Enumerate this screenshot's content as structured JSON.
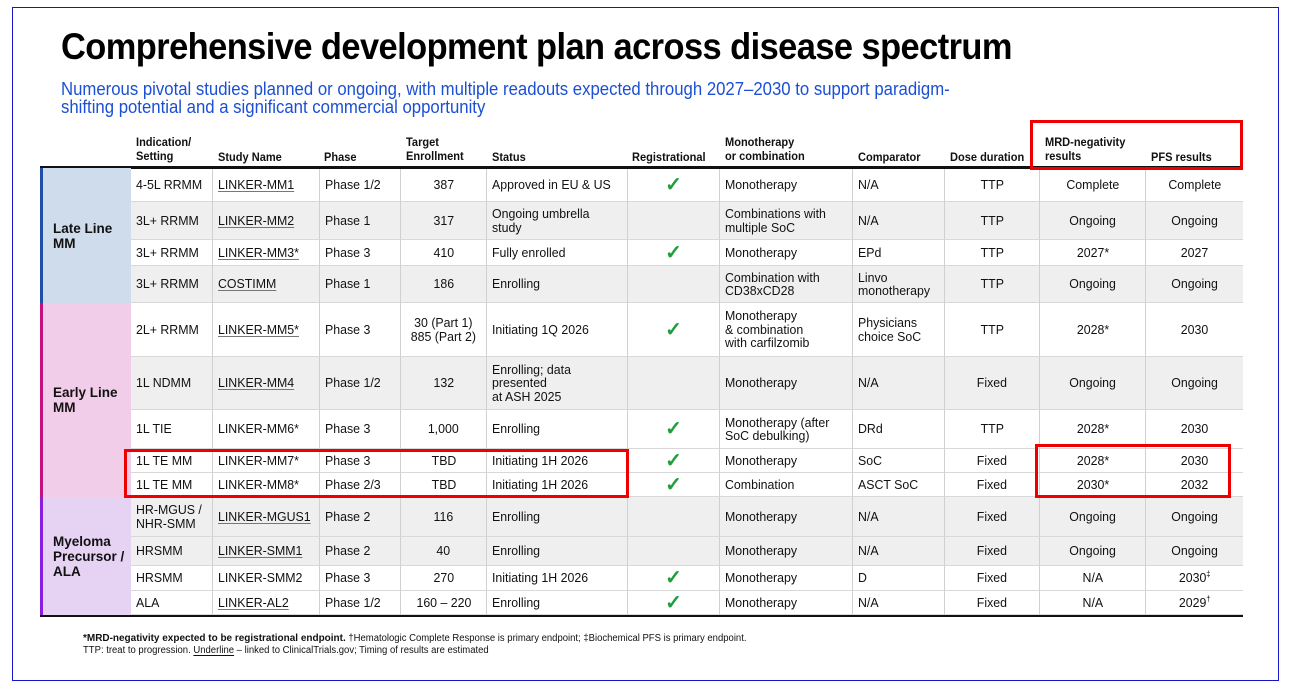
{
  "title": "Comprehensive development plan across disease spectrum",
  "subtitle": "Numerous pivotal studies planned or ongoing, with multiple readouts expected through 2027–2030 to support paradigm-shifting potential and a significant commercial opportunity",
  "colors": {
    "accent_blue": "#1a4fd6",
    "frame_border": "#1414c8",
    "highlight_red": "#ee0000",
    "check_green": "#1f9e3a",
    "late_line_bg": "#cfdcec",
    "early_line_bg": "#f2cdea",
    "precursor_bg": "#e6d3f3"
  },
  "table": {
    "headers": {
      "indication": "Indication/\nSetting",
      "study": "Study Name",
      "phase": "Phase",
      "enrollment": "Target\nEnrollment",
      "status": "Status",
      "registrational": "Registrational",
      "therapy": "Monotherapy\nor combination",
      "comparator": "Comparator",
      "dose": "Dose duration",
      "mrd": "MRD-negativity\nresults",
      "pfs": "PFS results"
    },
    "groups": [
      {
        "label": "Late Line MM"
      },
      {
        "label": "Early Line MM"
      },
      {
        "label": "Myeloma Precursor / ALA"
      }
    ],
    "rows": [
      {
        "indication": "4-5L RRMM",
        "study": "LINKER-MM1",
        "linked": true,
        "phase": "Phase 1/2",
        "enrollment": "387",
        "status": "Approved in EU & US",
        "registrational": true,
        "therapy": "Monotherapy",
        "comparator": "N/A",
        "dose": "TTP",
        "mrd": "Complete",
        "pfs": "Complete"
      },
      {
        "indication": "3L+ RRMM",
        "study": "LINKER-MM2",
        "linked": true,
        "phase": "Phase 1",
        "enrollment": "317",
        "status": "Ongoing umbrella study",
        "registrational": false,
        "therapy": "Combinations with multiple SoC",
        "comparator": "N/A",
        "dose": "TTP",
        "mrd": "Ongoing",
        "pfs": "Ongoing"
      },
      {
        "indication": "3L+ RRMM",
        "study": "LINKER-MM3*",
        "linked": true,
        "phase": "Phase 3",
        "enrollment": "410",
        "status": "Fully enrolled",
        "registrational": true,
        "therapy": "Monotherapy",
        "comparator": "EPd",
        "dose": "TTP",
        "mrd": "2027*",
        "pfs": "2027"
      },
      {
        "indication": "3L+ RRMM",
        "study": "COSTIMM",
        "linked": true,
        "phase": "Phase 1",
        "enrollment": "186",
        "status": "Enrolling",
        "registrational": false,
        "therapy": "Combination with CD38xCD28",
        "comparator": "Linvo monotherapy",
        "dose": "TTP",
        "mrd": "Ongoing",
        "pfs": "Ongoing"
      },
      {
        "indication": "2L+ RRMM",
        "study": "LINKER-MM5*",
        "linked": true,
        "phase": "Phase 3",
        "enrollment": "30 (Part 1)\n885 (Part 2)",
        "status": "Initiating 1Q 2026",
        "registrational": true,
        "therapy": "Monotherapy\n& combination\nwith carfilzomib",
        "comparator": "Physicians choice SoC",
        "dose": "TTP",
        "mrd": "2028*",
        "pfs": "2030"
      },
      {
        "indication": "1L NDMM",
        "study": "LINKER-MM4",
        "linked": true,
        "phase": "Phase 1/2",
        "enrollment": "132",
        "status": "Enrolling; data presented\nat ASH 2025",
        "registrational": false,
        "therapy": "Monotherapy",
        "comparator": "N/A",
        "dose": "Fixed",
        "mrd": "Ongoing",
        "pfs": "Ongoing"
      },
      {
        "indication": "1L TIE",
        "study": "LINKER-MM6*",
        "linked": false,
        "phase": "Phase 3",
        "enrollment": "1,000",
        "status": "Enrolling",
        "registrational": true,
        "therapy": "Monotherapy (after SoC debulking)",
        "comparator": "DRd",
        "dose": "TTP",
        "mrd": "2028*",
        "pfs": "2030"
      },
      {
        "indication": "1L TE MM",
        "study": "LINKER-MM7*",
        "linked": false,
        "phase": "Phase 3",
        "enrollment": "TBD",
        "status": "Initiating 1H 2026",
        "registrational": true,
        "therapy": "Monotherapy",
        "comparator": "SoC",
        "dose": "Fixed",
        "mrd": "2028*",
        "pfs": "2030"
      },
      {
        "indication": "1L TE MM",
        "study": "LINKER-MM8*",
        "linked": false,
        "phase": "Phase 2/3",
        "enrollment": "TBD",
        "status": "Initiating 1H 2026",
        "registrational": true,
        "therapy": "Combination",
        "comparator": "ASCT SoC",
        "dose": "Fixed",
        "mrd": "2030*",
        "pfs": "2032"
      },
      {
        "indication": "HR-MGUS /\nNHR-SMM",
        "study": "LINKER-MGUS1",
        "linked": true,
        "phase": "Phase 2",
        "enrollment": "116",
        "status": "Enrolling",
        "registrational": false,
        "therapy": "Monotherapy",
        "comparator": "N/A",
        "dose": "Fixed",
        "mrd": "Ongoing",
        "pfs": "Ongoing"
      },
      {
        "indication": "HRSMM",
        "study": "LINKER-SMM1",
        "linked": true,
        "phase": "Phase 2",
        "enrollment": "40",
        "status": "Enrolling",
        "registrational": false,
        "therapy": "Monotherapy",
        "comparator": "N/A",
        "dose": "Fixed",
        "mrd": "Ongoing",
        "pfs": "Ongoing"
      },
      {
        "indication": "HRSMM",
        "study": "LINKER-SMM2",
        "linked": false,
        "phase": "Phase 3",
        "enrollment": "270",
        "status": "Initiating 1H 2026",
        "registrational": true,
        "therapy": "Monotherapy",
        "comparator": "D",
        "dose": "Fixed",
        "mrd": "N/A",
        "pfs": "2030‡"
      },
      {
        "indication": "ALA",
        "study": "LINKER-AL2",
        "linked": true,
        "phase": "Phase 1/2",
        "enrollment": "160 – 220",
        "status": "Enrolling",
        "registrational": true,
        "therapy": "Monotherapy",
        "comparator": "N/A",
        "dose": "Fixed",
        "mrd": "N/A",
        "pfs": "2029†"
      }
    ],
    "check_symbol": "✓"
  },
  "footnotes": {
    "bold": "*MRD-negativity expected to be registrational endpoint.",
    "dagger": " †Hematologic Complete Response is primary endpoint; ‡Biochemical PFS is primary endpoint.",
    "line2_pre": "TTP: treat to progression. ",
    "line2_underline": "Underline",
    "line2_post": " – linked to ClinicalTrials.gov; Timing of results are estimated"
  }
}
